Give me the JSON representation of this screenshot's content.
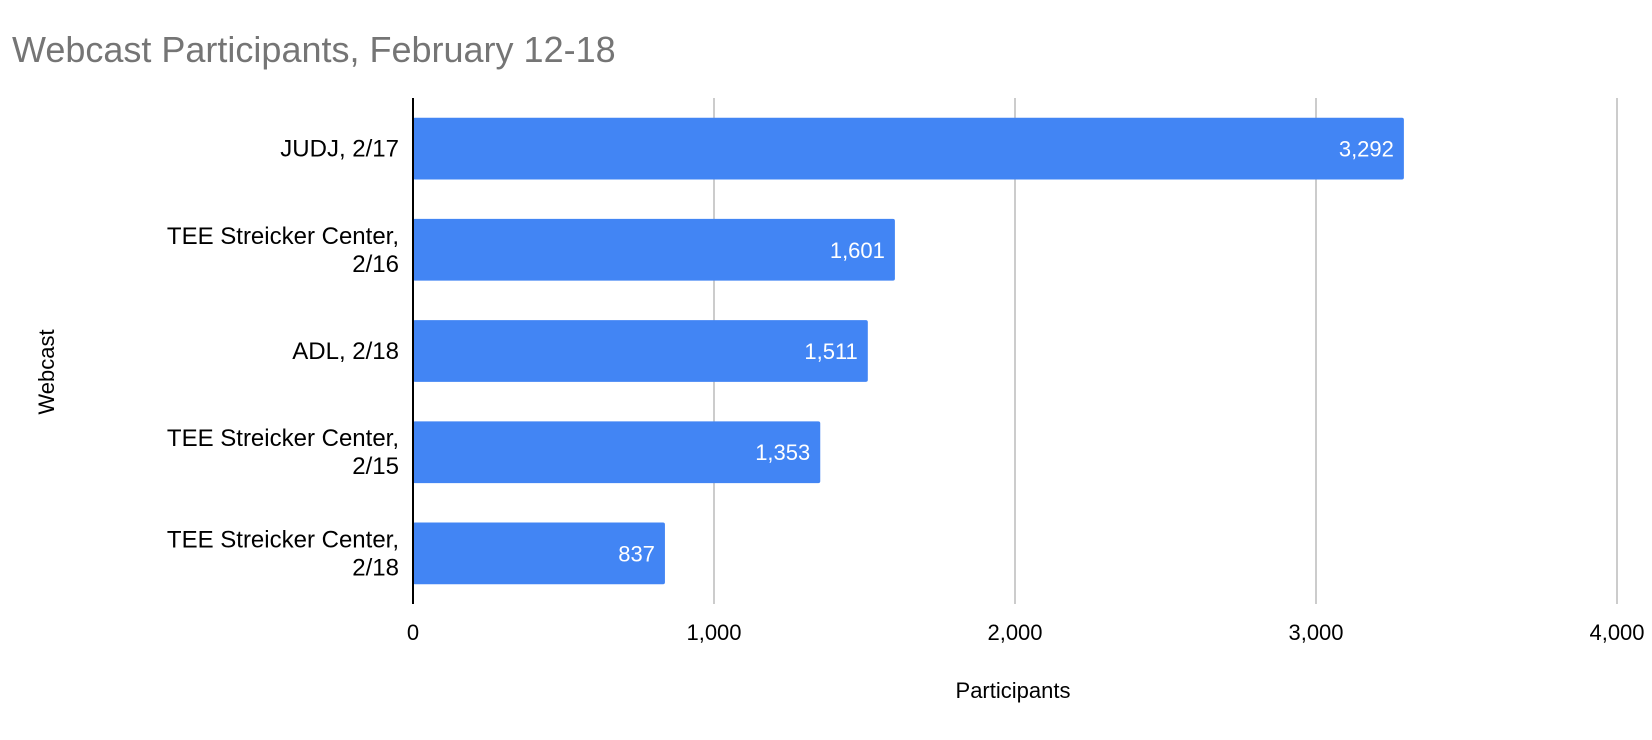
{
  "chart_data": {
    "type": "bar",
    "orientation": "horizontal",
    "title": "Webcast Participants, February 12-18",
    "xlabel": "Participants",
    "ylabel": "Webcast",
    "xlim": [
      0,
      4000
    ],
    "x_ticks": [
      0,
      1000,
      2000,
      3000,
      4000
    ],
    "x_tick_labels": [
      "0",
      "1,000",
      "2,000",
      "3,000",
      "4,000"
    ],
    "grid": "vertical",
    "legend": "none",
    "categories": [
      [
        "JUDJ, 2/17"
      ],
      [
        "TEE Streicker Center,",
        "2/16"
      ],
      [
        "ADL, 2/18"
      ],
      [
        "TEE Streicker Center,",
        "2/15"
      ],
      [
        "TEE Streicker Center,",
        "2/18"
      ]
    ],
    "values": [
      3292,
      1601,
      1511,
      1353,
      837
    ],
    "data_labels": [
      "3,292",
      "1,601",
      "1,511",
      "1,353",
      "837"
    ],
    "colors": {
      "bar": "#4285f4",
      "grid": "#cccccc",
      "axis": "#000000",
      "title": "#757575"
    }
  }
}
